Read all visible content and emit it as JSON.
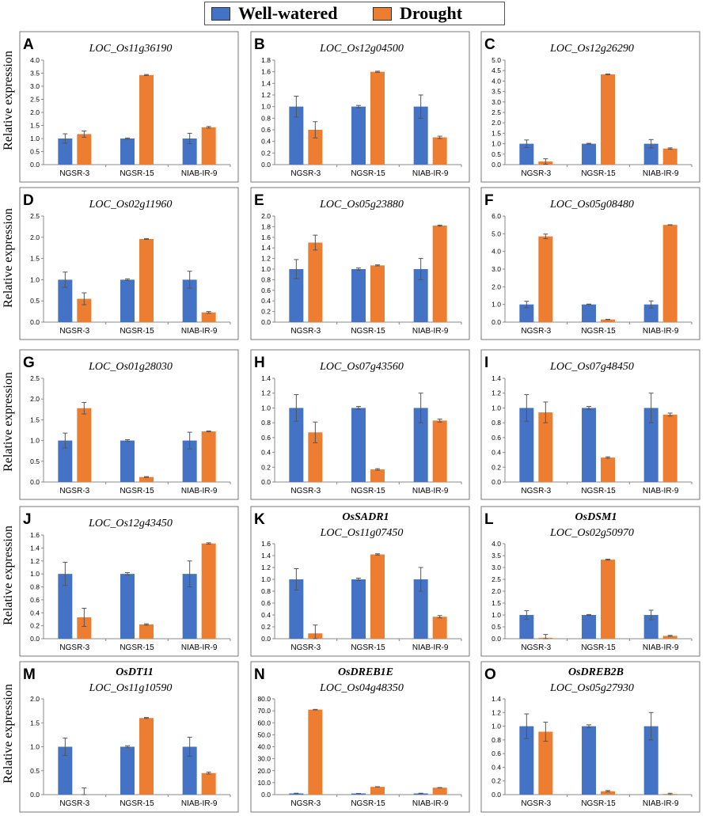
{
  "legend": {
    "well_watered": "Well-watered",
    "drought": "Drought"
  },
  "colors": {
    "well_watered": "#4472C4",
    "drought": "#ED7D31",
    "error_bar": "#555555",
    "axis": "#888888",
    "frame": "#777777"
  },
  "y_axis_label": "Relative  expression",
  "categories": [
    "NGSR-3",
    "NGSR-15",
    "NIAB-IR-9"
  ],
  "chart_data": [
    {
      "type": "bar",
      "panel": "A",
      "title": "LOC_Os11g36190",
      "categories": [
        "NGSR-3",
        "NGSR-15",
        "NIAB-IR-9"
      ],
      "ylim": [
        0,
        4
      ],
      "ytick_step": 0.5,
      "tick_decimals": 1,
      "series": [
        {
          "name": "Well-watered",
          "values": [
            1.0,
            1.0,
            1.0
          ],
          "errors": [
            0.18,
            0.02,
            0.2
          ]
        },
        {
          "name": "Drought",
          "values": [
            1.17,
            3.43,
            1.43
          ],
          "errors": [
            0.12,
            0.02,
            0.03
          ]
        }
      ]
    },
    {
      "type": "bar",
      "panel": "B",
      "title": "LOC_Os12g04500",
      "categories": [
        "NGSR-3",
        "NGSR-15",
        "NIAB-IR-9"
      ],
      "ylim": [
        0,
        1.8
      ],
      "ytick_step": 0.2,
      "tick_decimals": 1,
      "series": [
        {
          "name": "Well-watered",
          "values": [
            1.0,
            1.0,
            1.0
          ],
          "errors": [
            0.18,
            0.02,
            0.2
          ]
        },
        {
          "name": "Drought",
          "values": [
            0.6,
            1.6,
            0.47
          ],
          "errors": [
            0.14,
            0.01,
            0.02
          ]
        }
      ]
    },
    {
      "type": "bar",
      "panel": "C",
      "title": "LOC_Os12g26290",
      "categories": [
        "NGSR-3",
        "NGSR-15",
        "NIAB-IR-9"
      ],
      "ylim": [
        0,
        5
      ],
      "ytick_step": 0.5,
      "tick_decimals": 1,
      "series": [
        {
          "name": "Well-watered",
          "values": [
            1.0,
            1.0,
            1.0
          ],
          "errors": [
            0.18,
            0.02,
            0.2
          ]
        },
        {
          "name": "Drought",
          "values": [
            0.15,
            4.32,
            0.77
          ],
          "errors": [
            0.13,
            0.02,
            0.03
          ]
        }
      ]
    },
    {
      "type": "bar",
      "panel": "D",
      "title": "LOC_Os02g11960",
      "categories": [
        "NGSR-3",
        "NGSR-15",
        "NIAB-IR-9"
      ],
      "ylim": [
        0,
        2.5
      ],
      "ytick_step": 0.5,
      "tick_decimals": 1,
      "series": [
        {
          "name": "Well-watered",
          "values": [
            1.0,
            1.0,
            1.0
          ],
          "errors": [
            0.18,
            0.02,
            0.2
          ]
        },
        {
          "name": "Drought",
          "values": [
            0.55,
            1.96,
            0.23
          ],
          "errors": [
            0.14,
            0.01,
            0.02
          ]
        }
      ]
    },
    {
      "type": "bar",
      "panel": "E",
      "title": "LOC_Os05g23880",
      "categories": [
        "NGSR-3",
        "NGSR-15",
        "NIAB-IR-9"
      ],
      "ylim": [
        0,
        2
      ],
      "ytick_step": 0.2,
      "tick_decimals": 1,
      "series": [
        {
          "name": "Well-watered",
          "values": [
            1.0,
            1.0,
            1.0
          ],
          "errors": [
            0.18,
            0.02,
            0.2
          ]
        },
        {
          "name": "Drought",
          "values": [
            1.5,
            1.07,
            1.82
          ],
          "errors": [
            0.14,
            0.01,
            0.01
          ]
        }
      ]
    },
    {
      "type": "bar",
      "panel": "F",
      "title": "LOC_Os05g08480",
      "categories": [
        "NGSR-3",
        "NGSR-15",
        "NIAB-IR-9"
      ],
      "ylim": [
        0,
        6
      ],
      "ytick_step": 1,
      "tick_decimals": 1,
      "series": [
        {
          "name": "Well-watered",
          "values": [
            1.0,
            1.0,
            1.0
          ],
          "errors": [
            0.18,
            0.02,
            0.2
          ]
        },
        {
          "name": "Drought",
          "values": [
            4.85,
            0.15,
            5.5
          ],
          "errors": [
            0.13,
            0.01,
            0.01
          ]
        }
      ]
    },
    {
      "type": "bar",
      "panel": "G",
      "title": "LOC_Os01g28030",
      "categories": [
        "NGSR-3",
        "NGSR-15",
        "NIAB-IR-9"
      ],
      "ylim": [
        0,
        2.5
      ],
      "ytick_step": 0.5,
      "tick_decimals": 1,
      "series": [
        {
          "name": "Well-watered",
          "values": [
            1.0,
            1.0,
            1.0
          ],
          "errors": [
            0.18,
            0.02,
            0.2
          ]
        },
        {
          "name": "Drought",
          "values": [
            1.78,
            0.12,
            1.22
          ],
          "errors": [
            0.14,
            0.01,
            0.01
          ]
        }
      ]
    },
    {
      "type": "bar",
      "panel": "H",
      "title": "LOC_Os07g43560",
      "categories": [
        "NGSR-3",
        "NGSR-15",
        "NIAB-IR-9"
      ],
      "ylim": [
        0,
        1.4
      ],
      "ytick_step": 0.2,
      "tick_decimals": 1,
      "series": [
        {
          "name": "Well-watered",
          "values": [
            1.0,
            1.0,
            1.0
          ],
          "errors": [
            0.18,
            0.02,
            0.2
          ]
        },
        {
          "name": "Drought",
          "values": [
            0.67,
            0.17,
            0.83
          ],
          "errors": [
            0.14,
            0.01,
            0.02
          ]
        }
      ]
    },
    {
      "type": "bar",
      "panel": "I",
      "title": "LOC_Os07g48450",
      "categories": [
        "NGSR-3",
        "NGSR-15",
        "NIAB-IR-9"
      ],
      "ylim": [
        0,
        1.4
      ],
      "ytick_step": 0.2,
      "tick_decimals": 1,
      "series": [
        {
          "name": "Well-watered",
          "values": [
            1.0,
            1.0,
            1.0
          ],
          "errors": [
            0.18,
            0.02,
            0.2
          ]
        },
        {
          "name": "Drought",
          "values": [
            0.94,
            0.33,
            0.91
          ],
          "errors": [
            0.14,
            0.01,
            0.02
          ]
        }
      ]
    },
    {
      "type": "bar",
      "panel": "J",
      "title": "LOC_Os12g43450",
      "categories": [
        "NGSR-3",
        "NGSR-15",
        "NIAB-IR-9"
      ],
      "ylim": [
        0,
        1.6
      ],
      "ytick_step": 0.2,
      "tick_decimals": 1,
      "series": [
        {
          "name": "Well-watered",
          "values": [
            1.0,
            1.0,
            1.0
          ],
          "errors": [
            0.18,
            0.02,
            0.2
          ]
        },
        {
          "name": "Drought",
          "values": [
            0.33,
            0.22,
            1.47
          ],
          "errors": [
            0.14,
            0.01,
            0.01
          ]
        }
      ]
    },
    {
      "type": "bar",
      "panel": "K",
      "title_bold": "OsSADR1",
      "title": "LOC_Os11g07450",
      "categories": [
        "NGSR-3",
        "NGSR-15",
        "NIAB-IR-9"
      ],
      "ylim": [
        0,
        1.6
      ],
      "ytick_step": 0.2,
      "tick_decimals": 1,
      "series": [
        {
          "name": "Well-watered",
          "values": [
            1.0,
            1.0,
            1.0
          ],
          "errors": [
            0.18,
            0.02,
            0.2
          ]
        },
        {
          "name": "Drought",
          "values": [
            0.09,
            1.42,
            0.37
          ],
          "errors": [
            0.14,
            0.01,
            0.02
          ]
        }
      ]
    },
    {
      "type": "bar",
      "panel": "L",
      "title_bold": "OsDSM1",
      "title": "LOC_Os02g50970",
      "categories": [
        "NGSR-3",
        "NGSR-15",
        "NIAB-IR-9"
      ],
      "ylim": [
        0,
        4
      ],
      "ytick_step": 0.5,
      "tick_decimals": 1,
      "series": [
        {
          "name": "Well-watered",
          "values": [
            1.0,
            1.0,
            1.0
          ],
          "errors": [
            0.18,
            0.02,
            0.2
          ]
        },
        {
          "name": "Drought",
          "values": [
            0.04,
            3.33,
            0.12
          ],
          "errors": [
            0.14,
            0.02,
            0.02
          ]
        }
      ]
    },
    {
      "type": "bar",
      "panel": "M",
      "title_bold": "OsDT11",
      "title": "LOC_Os11g10590",
      "categories": [
        "NGSR-3",
        "NGSR-15",
        "NIAB-IR-9"
      ],
      "ylim": [
        0,
        2
      ],
      "ytick_step": 0.5,
      "tick_decimals": 1,
      "series": [
        {
          "name": "Well-watered",
          "values": [
            1.0,
            1.0,
            1.0
          ],
          "errors": [
            0.18,
            0.02,
            0.2
          ]
        },
        {
          "name": "Drought",
          "values": [
            0.0,
            1.6,
            0.45
          ],
          "errors": [
            0.14,
            0.01,
            0.02
          ]
        }
      ]
    },
    {
      "type": "bar",
      "panel": "N",
      "title_bold": "OsDREB1E",
      "title": "LOC_Os04g48350",
      "categories": [
        "NGSR-3",
        "NGSR-15",
        "NIAB-IR-9"
      ],
      "ylim": [
        0,
        80
      ],
      "ytick_step": 10,
      "tick_decimals": 1,
      "series": [
        {
          "name": "Well-watered",
          "values": [
            1.0,
            1.0,
            1.0
          ],
          "errors": [
            0.18,
            0.02,
            0.2
          ]
        },
        {
          "name": "Drought",
          "values": [
            71.0,
            6.5,
            5.8
          ],
          "errors": [
            0.2,
            0.1,
            0.1
          ]
        }
      ]
    },
    {
      "type": "bar",
      "panel": "O",
      "title_bold": "OsDREB2B",
      "title": "LOC_Os05g27930",
      "categories": [
        "NGSR-3",
        "NGSR-15",
        "NIAB-IR-9"
      ],
      "ylim": [
        0,
        1.4
      ],
      "ytick_step": 0.2,
      "tick_decimals": 1,
      "series": [
        {
          "name": "Well-watered",
          "values": [
            1.0,
            1.0,
            1.0
          ],
          "errors": [
            0.18,
            0.02,
            0.2
          ]
        },
        {
          "name": "Drought",
          "values": [
            0.92,
            0.05,
            0.01
          ],
          "errors": [
            0.14,
            0.01,
            0.01
          ]
        }
      ]
    }
  ]
}
